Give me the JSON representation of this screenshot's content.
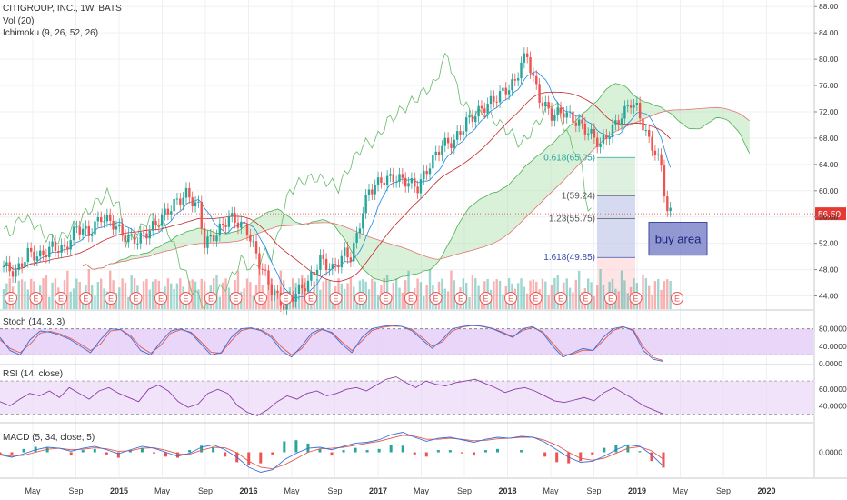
{
  "header": {
    "symbol": "CITIGROUP, INC., 1W, BATS",
    "indicators": [
      "Vol (20)",
      "Ichimoku (9, 26, 52, 26)"
    ]
  },
  "colors": {
    "up": "#26a69a",
    "down": "#ef5350",
    "grid": "#eef0f3",
    "axis": "#c7c9cc",
    "stoch_k": "#3a6fd8",
    "stoch_d": "#e0584a",
    "rsi": "#8b3ca6",
    "band": "#e7d2f7",
    "price_line": "#e53935",
    "cloud_up": "#b9e4b9",
    "cloud_down": "#f7c2bf",
    "buy_box": "#7f86c9"
  },
  "chart_data": [
    {
      "type": "candlestick",
      "title": "CITIGROUP, INC., 1W, BATS",
      "y_ticks": [
        "88.00",
        "84.00",
        "80.00",
        "76.00",
        "72.00",
        "68.00",
        "64.00",
        "60.00",
        "56.00",
        "52.00",
        "48.00",
        "44.00"
      ],
      "ylim": [
        42,
        89
      ],
      "x_ticks": [
        "May",
        "Sep",
        "2015",
        "May",
        "Sep",
        "2016",
        "May",
        "Sep",
        "2017",
        "May",
        "Sep",
        "2018",
        "May",
        "Sep",
        "2019",
        "May",
        "Sep",
        "2020"
      ],
      "last_price": "56.50",
      "close_path": [
        [
          0,
          48.5
        ],
        [
          4,
          47.5
        ],
        [
          8,
          50.5
        ],
        [
          12,
          50
        ],
        [
          16,
          51.5
        ],
        [
          20,
          51
        ],
        [
          24,
          54.5
        ],
        [
          28,
          53.5
        ],
        [
          32,
          56
        ],
        [
          36,
          55
        ],
        [
          40,
          53
        ],
        [
          44,
          52.5
        ],
        [
          48,
          54
        ],
        [
          52,
          56
        ],
        [
          56,
          58
        ],
        [
          60,
          59.5
        ],
        [
          64,
          57.5
        ],
        [
          66,
          52
        ],
        [
          70,
          53.5
        ],
        [
          74,
          56
        ],
        [
          76,
          55.5
        ],
        [
          80,
          54
        ],
        [
          84,
          49
        ],
        [
          88,
          45
        ],
        [
          92,
          42.5
        ],
        [
          96,
          44.5
        ],
        [
          100,
          46
        ],
        [
          104,
          49.5
        ],
        [
          108,
          48
        ],
        [
          112,
          50.5
        ],
        [
          114,
          50
        ],
        [
          116,
          53
        ],
        [
          118,
          57
        ],
        [
          120,
          60
        ],
        [
          124,
          61.5
        ],
        [
          128,
          62
        ],
        [
          132,
          61.5
        ],
        [
          136,
          60.5
        ],
        [
          140,
          64
        ],
        [
          144,
          67
        ],
        [
          148,
          67.5
        ],
        [
          152,
          70.5
        ],
        [
          156,
          72
        ],
        [
          160,
          73.5
        ],
        [
          164,
          75
        ],
        [
          168,
          76.5
        ],
        [
          170,
          79.5
        ],
        [
          172,
          80.5
        ],
        [
          174,
          77
        ],
        [
          176,
          74
        ],
        [
          180,
          71.5
        ],
        [
          184,
          72
        ],
        [
          188,
          70.5
        ],
        [
          192,
          69
        ],
        [
          196,
          67
        ],
        [
          200,
          69.5
        ],
        [
          204,
          72
        ],
        [
          206,
          73.5
        ],
        [
          208,
          72.5
        ],
        [
          210,
          70
        ],
        [
          212,
          67.5
        ],
        [
          214,
          66
        ],
        [
          216,
          63.5
        ],
        [
          217,
          60
        ],
        [
          218,
          57
        ],
        [
          219,
          56.5
        ]
      ],
      "volume_series": "Vol (20)",
      "ichimoku_series": "Ichimoku (9, 26, 52, 26)",
      "annotations": [
        {
          "text": "0.618(65.05)",
          "level": 65.05
        },
        {
          "text": "1(59.24)",
          "level": 59.24
        },
        {
          "text": "1.23(55.75)",
          "level": 55.75
        },
        {
          "text": "1.618(49.85)",
          "level": 49.85
        },
        {
          "text": "buy area",
          "level_low": 50.2,
          "level_high": 55.2
        }
      ],
      "earnings_marker": "E"
    },
    {
      "type": "line",
      "title": "Stoch (14, 3, 3)",
      "y_ticks": [
        "80.0000",
        "40.0000",
        "0.0000"
      ],
      "ylim": [
        0,
        100
      ],
      "series": [
        {
          "values": [
            60,
            30,
            20,
            55,
            75,
            72,
            65,
            55,
            40,
            25,
            55,
            80,
            78,
            60,
            30,
            20,
            50,
            75,
            80,
            70,
            45,
            20,
            25,
            60,
            80,
            82,
            75,
            60,
            30,
            15,
            40,
            70,
            80,
            70,
            45,
            25,
            60,
            80,
            85,
            88,
            85,
            75,
            55,
            35,
            55,
            80,
            85,
            88,
            85,
            80,
            70,
            60,
            80,
            85,
            70,
            40,
            15,
            25,
            35,
            30,
            60,
            80,
            85,
            75,
            30,
            10,
            5
          ]
        },
        {
          "values": [
            55,
            35,
            25,
            45,
            70,
            74,
            68,
            58,
            45,
            30,
            45,
            75,
            78,
            64,
            38,
            24,
            42,
            70,
            78,
            72,
            50,
            26,
            24,
            52,
            76,
            81,
            77,
            64,
            38,
            20,
            34,
            64,
            78,
            72,
            50,
            30,
            52,
            76,
            83,
            86,
            85,
            78,
            60,
            40,
            50,
            75,
            84,
            87,
            86,
            81,
            72,
            62,
            76,
            83,
            73,
            46,
            20,
            22,
            31,
            30,
            52,
            76,
            84,
            78,
            38,
            14,
            7
          ]
        }
      ]
    },
    {
      "type": "line",
      "title": "RSI (14, close)",
      "y_ticks": [
        "60.0000",
        "40.0000"
      ],
      "ylim": [
        25,
        80
      ],
      "series": [
        {
          "values": [
            45,
            40,
            48,
            55,
            52,
            58,
            50,
            62,
            55,
            48,
            58,
            62,
            55,
            50,
            45,
            60,
            65,
            58,
            45,
            38,
            42,
            55,
            60,
            55,
            40,
            32,
            28,
            35,
            45,
            52,
            48,
            55,
            58,
            52,
            55,
            60,
            62,
            58,
            65,
            72,
            75,
            68,
            62,
            70,
            66,
            64,
            68,
            70,
            72,
            67,
            62,
            56,
            60,
            62,
            58,
            52,
            46,
            44,
            47,
            50,
            46,
            56,
            62,
            55,
            48,
            40,
            35,
            30
          ]
        }
      ]
    },
    {
      "type": "bar+line",
      "title": "MACD (5, 34, close, 5)",
      "y_ticks": [
        "0.0000"
      ],
      "ylim": [
        -5,
        5
      ],
      "series": [
        {
          "values": [
            -0.5,
            -1,
            -0.3,
            0.5,
            1,
            0.8,
            0.2,
            0.8,
            1.2,
            0.5,
            -0.3,
            0.5,
            1.2,
            0.8,
            0,
            -0.8,
            -0.2,
            1,
            1.5,
            0.5,
            -1,
            -3,
            -4,
            -3.5,
            -1.5,
            -0.2,
            0.8,
            1,
            0.5,
            1.2,
            1.8,
            2,
            2.5,
            3.5,
            4,
            3,
            2.2,
            2.8,
            3,
            2.5,
            2,
            2.6,
            3,
            2.8,
            3.2,
            3,
            2,
            0.5,
            -1,
            -2,
            -1.8,
            -0.8,
            0.5,
            1.5,
            1.2,
            -0.5,
            -2.8
          ]
        },
        {
          "values": [
            -0.3,
            -0.8,
            -0.6,
            0,
            0.6,
            0.8,
            0.5,
            0.6,
            0.9,
            0.7,
            0.2,
            0.3,
            0.8,
            0.9,
            0.4,
            -0.3,
            -0.4,
            0.4,
            1,
            0.9,
            -0.1,
            -1.8,
            -3,
            -3.3,
            -2.5,
            -1.3,
            0,
            0.7,
            0.8,
            1,
            1.4,
            1.8,
            2.2,
            2.8,
            3.4,
            3.2,
            2.6,
            2.6,
            2.8,
            2.6,
            2.3,
            2.4,
            2.7,
            2.8,
            3,
            3,
            2.4,
            1.4,
            0,
            -1.2,
            -1.6,
            -1.2,
            -0.2,
            0.8,
            1.1,
            0.3,
            -1.4
          ]
        }
      ]
    }
  ],
  "pane_titles": {
    "stoch": "Stoch (14, 3, 3)",
    "rsi": "RSI (14, close)",
    "macd": "MACD (5, 34, close, 5)"
  }
}
